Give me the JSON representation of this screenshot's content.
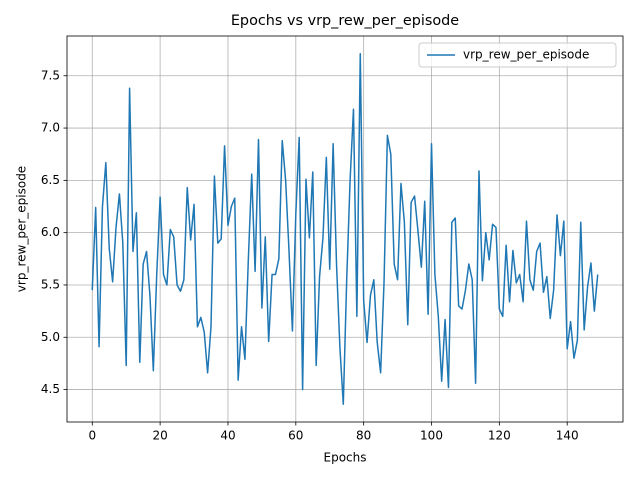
{
  "chart_data": {
    "type": "line",
    "title": "Epochs vs vrp_rew_per_episode",
    "xlabel": "Epochs",
    "ylabel": "vrp_rew_per_episode",
    "x": [
      0,
      1,
      2,
      3,
      4,
      5,
      6,
      7,
      8,
      9,
      10,
      11,
      12,
      13,
      14,
      15,
      16,
      17,
      18,
      19,
      20,
      21,
      22,
      23,
      24,
      25,
      26,
      27,
      28,
      29,
      30,
      31,
      32,
      33,
      34,
      35,
      36,
      37,
      38,
      39,
      40,
      41,
      42,
      43,
      44,
      45,
      46,
      47,
      48,
      49,
      50,
      51,
      52,
      53,
      54,
      55,
      56,
      57,
      58,
      59,
      60,
      61,
      62,
      63,
      64,
      65,
      66,
      67,
      68,
      69,
      70,
      71,
      72,
      73,
      74,
      75,
      76,
      77,
      78,
      79,
      80,
      81,
      82,
      83,
      84,
      85,
      86,
      87,
      88,
      89,
      90,
      91,
      92,
      93,
      94,
      95,
      96,
      97,
      98,
      99,
      100,
      101,
      102,
      103,
      104,
      105,
      106,
      107,
      108,
      109,
      110,
      111,
      112,
      113,
      114,
      115,
      116,
      117,
      118,
      119,
      120,
      121,
      122,
      123,
      124,
      125,
      126,
      127,
      128,
      129,
      130,
      131,
      132,
      133,
      134,
      135,
      136,
      137,
      138,
      139,
      140,
      141,
      142,
      143,
      144,
      145,
      146,
      147,
      148,
      149
    ],
    "series": [
      {
        "name": "vrp_rew_per_episode",
        "color": "#1f77b4",
        "values": [
          5.45,
          6.24,
          4.91,
          6.25,
          6.67,
          5.85,
          5.53,
          6.05,
          6.37,
          5.9,
          4.73,
          7.38,
          5.82,
          6.19,
          4.76,
          5.7,
          5.82,
          5.4,
          4.68,
          5.6,
          6.34,
          5.6,
          5.5,
          6.03,
          5.96,
          5.5,
          5.44,
          5.55,
          6.43,
          5.93,
          6.27,
          5.1,
          5.19,
          5.05,
          4.66,
          5.1,
          6.54,
          5.9,
          5.94,
          6.83,
          6.07,
          6.25,
          6.33,
          4.59,
          5.1,
          4.79,
          5.74,
          6.56,
          5.63,
          6.89,
          5.28,
          5.96,
          4.96,
          5.6,
          5.6,
          5.75,
          6.88,
          6.5,
          5.82,
          5.06,
          6.18,
          6.91,
          4.5,
          6.51,
          5.95,
          6.58,
          4.73,
          5.58,
          5.95,
          6.72,
          5.65,
          6.85,
          5.7,
          4.9,
          4.36,
          5.55,
          6.5,
          7.18,
          5.2,
          7.71,
          5.35,
          4.95,
          5.4,
          5.55,
          4.95,
          4.66,
          5.52,
          6.93,
          6.75,
          5.7,
          5.55,
          6.47,
          6.1,
          5.12,
          6.29,
          6.35,
          6.02,
          5.67,
          6.3,
          5.22,
          6.85,
          5.6,
          5.2,
          4.58,
          5.17,
          4.52,
          6.1,
          6.14,
          5.3,
          5.27,
          5.45,
          5.7,
          5.55,
          4.56,
          6.59,
          5.54,
          6.0,
          5.74,
          6.08,
          6.05,
          5.27,
          5.2,
          5.88,
          5.34,
          5.83,
          5.52,
          5.6,
          5.34,
          6.11,
          5.55,
          5.45,
          5.82,
          5.9,
          5.43,
          5.58,
          5.18,
          5.45,
          6.17,
          5.78,
          6.11,
          4.89,
          5.15,
          4.8,
          4.97,
          6.1,
          5.07,
          5.48,
          5.71,
          5.25,
          5.6
        ]
      }
    ],
    "xlim": [
      -7.45,
      156.45
    ],
    "ylim": [
      4.19,
      7.88
    ],
    "xticks": [
      0,
      20,
      40,
      60,
      80,
      100,
      120,
      140
    ],
    "yticks": [
      4.5,
      {
        "value": 5,
        "label": "5.0"
      },
      5.5,
      {
        "value": 6,
        "label": "6.0"
      },
      6.5,
      {
        "value": 7,
        "label": "7.0"
      },
      7.5
    ],
    "grid": true,
    "legend": "upper right"
  }
}
